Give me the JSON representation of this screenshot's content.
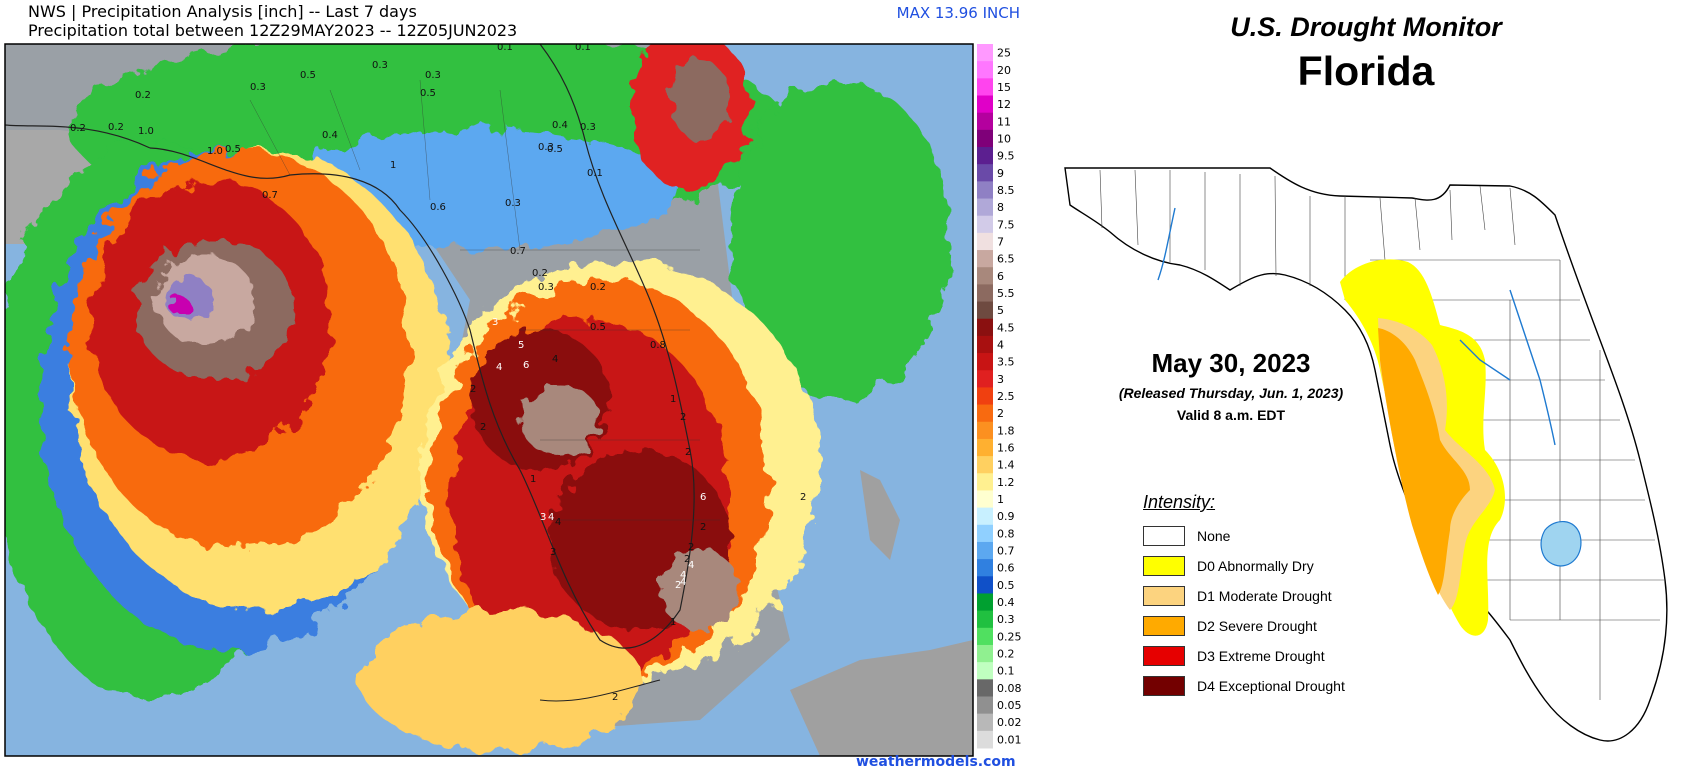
{
  "precip_panel": {
    "header_line1": "NWS | Precipitation Analysis [inch] -- Last 7 days",
    "header_line2": "Precipitation total between 12Z29MAY2023 -- 12Z05JUN2023",
    "max_label": "MAX 13.96 INCH",
    "watermark": "weathermodels.com",
    "colors": {
      "ocean": "#86b4e0",
      "land": "#9ea8b0",
      "accent": "#1f4fe0"
    },
    "legend": [
      {
        "label": "25",
        "color": "#ff99ff"
      },
      {
        "label": "20",
        "color": "#ff77ff"
      },
      {
        "label": "15",
        "color": "#ff44ee"
      },
      {
        "label": "12",
        "color": "#e000c8"
      },
      {
        "label": "11",
        "color": "#b4009e"
      },
      {
        "label": "10",
        "color": "#7f0079"
      },
      {
        "label": "9.5",
        "color": "#5c1f90"
      },
      {
        "label": "9",
        "color": "#6a4aa8"
      },
      {
        "label": "8.5",
        "color": "#8f80c4"
      },
      {
        "label": "8",
        "color": "#b0a8d8"
      },
      {
        "label": "7.5",
        "color": "#d2cbe8"
      },
      {
        "label": "7",
        "color": "#f0e0e0"
      },
      {
        "label": "6.5",
        "color": "#c8a8a0"
      },
      {
        "label": "6",
        "color": "#a8887c"
      },
      {
        "label": "5.5",
        "color": "#8c6a60"
      },
      {
        "label": "5",
        "color": "#6e4a40"
      },
      {
        "label": "4.5",
        "color": "#8a1010"
      },
      {
        "label": "4",
        "color": "#a81010"
      },
      {
        "label": "3.5",
        "color": "#c81414"
      },
      {
        "label": "3",
        "color": "#e02020"
      },
      {
        "label": "2.5",
        "color": "#f04010"
      },
      {
        "label": "2",
        "color": "#f86a10"
      },
      {
        "label": "1.8",
        "color": "#fc9020"
      },
      {
        "label": "1.6",
        "color": "#ffb030"
      },
      {
        "label": "1.4",
        "color": "#ffd060"
      },
      {
        "label": "1.2",
        "color": "#fff090"
      },
      {
        "label": "1",
        "color": "#ffffd0"
      },
      {
        "label": "0.9",
        "color": "#c8f0ff"
      },
      {
        "label": "0.8",
        "color": "#90d0ff"
      },
      {
        "label": "0.7",
        "color": "#5ca8f0"
      },
      {
        "label": "0.6",
        "color": "#3080e0"
      },
      {
        "label": "0.5",
        "color": "#1050c8"
      },
      {
        "label": "0.4",
        "color": "#00a030"
      },
      {
        "label": "0.3",
        "color": "#20c040"
      },
      {
        "label": "0.25",
        "color": "#50e060"
      },
      {
        "label": "0.2",
        "color": "#90f090"
      },
      {
        "label": "0.1",
        "color": "#c0ffc0"
      },
      {
        "label": "0.08",
        "color": "#686868"
      },
      {
        "label": "0.05",
        "color": "#909090"
      },
      {
        "label": "0.02",
        "color": "#b8b8b8"
      },
      {
        "label": "0.01",
        "color": "#dcdcdc"
      }
    ],
    "map_labels": [
      "0.1",
      "0.1",
      "0.2",
      "0.3",
      "0.5",
      "0.3",
      "0.3",
      "0.5",
      "0.2",
      "0.2",
      "1.0",
      "0.5",
      "0.4",
      "1.0",
      "0.7",
      "1",
      "0.6",
      "0.3",
      "0.4",
      "0.3",
      "0.5",
      "0.3",
      "0.1",
      "0.7",
      "0.2",
      "0.3",
      "0.2",
      "0.5",
      "0.8",
      "3",
      "5",
      "4",
      "6",
      "4",
      "2",
      "2",
      "1",
      "2",
      "2",
      "1",
      "3",
      "4",
      "4",
      "6",
      "2",
      "2",
      "2",
      "3",
      "4",
      "4",
      "4",
      "2",
      "2",
      "1",
      "2"
    ]
  },
  "drought_panel": {
    "title": "U.S. Drought Monitor",
    "state": "Florida",
    "date": "May 30, 2023",
    "released": "(Released Thursday, Jun. 1, 2023)",
    "valid": "Valid 8 a.m. EDT",
    "intensity_title": "Intensity:",
    "legend": [
      {
        "label": "None",
        "color": "#ffffff"
      },
      {
        "label": "D0 Abnormally Dry",
        "color": "#ffff00"
      },
      {
        "label": "D1 Moderate Drought",
        "color": "#fcd37f"
      },
      {
        "label": "D2 Severe Drought",
        "color": "#ffaa00"
      },
      {
        "label": "D3 Extreme Drought",
        "color": "#e60000"
      },
      {
        "label": "D4 Exceptional Drought",
        "color": "#730000"
      }
    ]
  }
}
